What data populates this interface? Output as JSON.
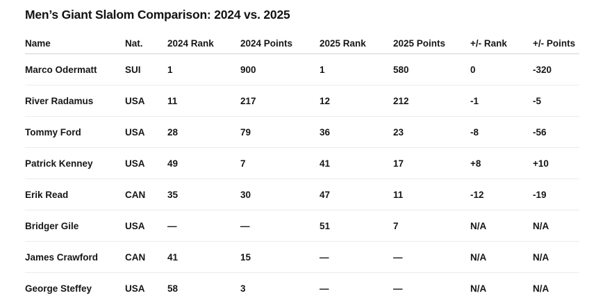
{
  "title": "Men’s Giant Slalom Comparison: 2024 vs. 2025",
  "table": {
    "columns": [
      "Name",
      "Nat.",
      "2024 Rank",
      "2024 Points",
      "2025 Rank",
      "2025 Points",
      "+/- Rank",
      "+/- Points"
    ],
    "rows": [
      [
        "Marco Odermatt",
        "SUI",
        "1",
        "900",
        "1",
        "580",
        "0",
        "-320"
      ],
      [
        "River Radamus",
        "USA",
        "11",
        "217",
        "12",
        "212",
        "-1",
        "-5"
      ],
      [
        "Tommy Ford",
        "USA",
        "28",
        "79",
        "36",
        "23",
        "-8",
        "-56"
      ],
      [
        "Patrick Kenney",
        "USA",
        "49",
        "7",
        "41",
        "17",
        "+8",
        "+10"
      ],
      [
        "Erik Read",
        "CAN",
        "35",
        "30",
        "47",
        "11",
        "-12",
        "-19"
      ],
      [
        "Bridger Gile",
        "USA",
        "—",
        "—",
        "51",
        "7",
        "N/A",
        "N/A"
      ],
      [
        "James Crawford",
        "CAN",
        "41",
        "15",
        "—",
        "—",
        "N/A",
        "N/A"
      ],
      [
        "George Steffey",
        "USA",
        "58",
        "3",
        "—",
        "—",
        "N/A",
        "N/A"
      ]
    ]
  },
  "chart_data": {
    "type": "table",
    "title": "Men’s Giant Slalom Comparison: 2024 vs. 2025",
    "columns": [
      "Name",
      "Nat.",
      "2024 Rank",
      "2024 Points",
      "2025 Rank",
      "2025 Points",
      "+/- Rank",
      "+/- Points"
    ],
    "rows": [
      {
        "name": "Marco Odermatt",
        "nat": "SUI",
        "rank_2024": 1,
        "points_2024": 900,
        "rank_2025": 1,
        "points_2025": 580,
        "delta_rank": "0",
        "delta_points": "-320"
      },
      {
        "name": "River Radamus",
        "nat": "USA",
        "rank_2024": 11,
        "points_2024": 217,
        "rank_2025": 12,
        "points_2025": 212,
        "delta_rank": "-1",
        "delta_points": "-5"
      },
      {
        "name": "Tommy Ford",
        "nat": "USA",
        "rank_2024": 28,
        "points_2024": 79,
        "rank_2025": 36,
        "points_2025": 23,
        "delta_rank": "-8",
        "delta_points": "-56"
      },
      {
        "name": "Patrick Kenney",
        "nat": "USA",
        "rank_2024": 49,
        "points_2024": 7,
        "rank_2025": 41,
        "points_2025": 17,
        "delta_rank": "+8",
        "delta_points": "+10"
      },
      {
        "name": "Erik Read",
        "nat": "CAN",
        "rank_2024": 35,
        "points_2024": 30,
        "rank_2025": 47,
        "points_2025": 11,
        "delta_rank": "-12",
        "delta_points": "-19"
      },
      {
        "name": "Bridger Gile",
        "nat": "USA",
        "rank_2024": null,
        "points_2024": null,
        "rank_2025": 51,
        "points_2025": 7,
        "delta_rank": "N/A",
        "delta_points": "N/A"
      },
      {
        "name": "James Crawford",
        "nat": "CAN",
        "rank_2024": 41,
        "points_2024": 15,
        "rank_2025": null,
        "points_2025": null,
        "delta_rank": "N/A",
        "delta_points": "N/A"
      },
      {
        "name": "George Steffey",
        "nat": "USA",
        "rank_2024": 58,
        "points_2024": 3,
        "rank_2025": null,
        "points_2025": null,
        "delta_rank": "N/A",
        "delta_points": "N/A"
      }
    ]
  },
  "colors": {
    "background": "#ffffff",
    "text": "#161616",
    "header_border": "#d1d1d1",
    "row_border": "#ebebeb"
  }
}
